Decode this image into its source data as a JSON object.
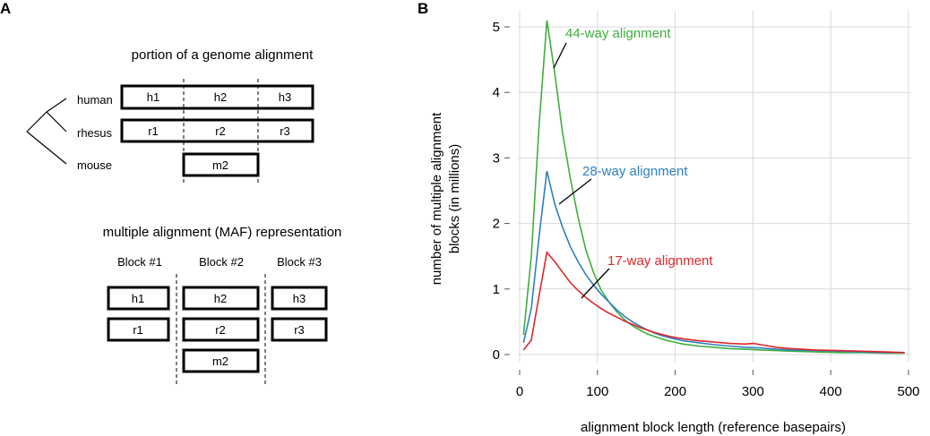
{
  "panel_a": {
    "label": "A",
    "top_title": "portion of a genome alignment",
    "species": [
      "human",
      "rhesus",
      "mouse"
    ],
    "human_segments": [
      "h1",
      "h2",
      "h3"
    ],
    "rhesus_segments": [
      "r1",
      "r2",
      "r3"
    ],
    "mouse_segments": [
      "m2"
    ],
    "bottom_title": "multiple alignment (MAF) representation",
    "blocks": [
      {
        "name": "Block #1",
        "rows": [
          "h1",
          "r1"
        ]
      },
      {
        "name": "Block #2",
        "rows": [
          "h2",
          "r2",
          "m2"
        ]
      },
      {
        "name": "Block #3",
        "rows": [
          "h3",
          "r3"
        ]
      }
    ]
  },
  "chart_data": {
    "label": "B",
    "type": "line",
    "xlabel": "alignment block length (reference basepairs)",
    "ylabel_lines": [
      "number of multiple alignment",
      "blocks (in millions)"
    ],
    "xlim": [
      0,
      500
    ],
    "ylim": [
      0,
      5.3
    ],
    "xticks": [
      0,
      100,
      200,
      300,
      400,
      500
    ],
    "yticks": [
      0,
      1,
      2,
      3,
      4,
      5
    ],
    "grid": true,
    "series": [
      {
        "name": "44-way alignment",
        "color": "#3fae3f",
        "x": [
          5,
          15,
          25,
          35,
          45,
          55,
          65,
          75,
          85,
          95,
          105,
          115,
          125,
          135,
          145,
          155,
          165,
          175,
          185,
          195,
          210,
          230,
          250,
          270,
          290,
          310,
          330,
          350,
          380,
          410,
          440,
          470,
          495
        ],
        "y": [
          0.3,
          1.5,
          3.5,
          5.1,
          4.3,
          3.4,
          2.7,
          2.1,
          1.6,
          1.25,
          0.98,
          0.8,
          0.65,
          0.53,
          0.44,
          0.37,
          0.31,
          0.27,
          0.23,
          0.2,
          0.16,
          0.13,
          0.11,
          0.09,
          0.08,
          0.07,
          0.06,
          0.05,
          0.04,
          0.03,
          0.03,
          0.02,
          0.02
        ]
      },
      {
        "name": "28-way alignment",
        "color": "#2f7fc0",
        "x": [
          5,
          15,
          25,
          35,
          45,
          55,
          65,
          75,
          85,
          95,
          105,
          115,
          125,
          135,
          145,
          155,
          165,
          175,
          185,
          195,
          210,
          230,
          250,
          270,
          290,
          310,
          330,
          350,
          380,
          410,
          440,
          470,
          495
        ],
        "y": [
          0.18,
          0.7,
          1.8,
          2.8,
          2.3,
          1.95,
          1.65,
          1.42,
          1.22,
          1.06,
          0.92,
          0.8,
          0.68,
          0.58,
          0.5,
          0.43,
          0.37,
          0.32,
          0.28,
          0.25,
          0.21,
          0.18,
          0.15,
          0.13,
          0.11,
          0.1,
          0.08,
          0.07,
          0.06,
          0.05,
          0.04,
          0.03,
          0.03
        ]
      },
      {
        "name": "17-way alignment",
        "color": "#e0262b",
        "x": [
          5,
          15,
          25,
          35,
          45,
          55,
          65,
          75,
          85,
          95,
          105,
          115,
          125,
          135,
          145,
          155,
          165,
          175,
          185,
          195,
          210,
          230,
          250,
          270,
          290,
          300,
          310,
          330,
          350,
          380,
          410,
          440,
          470,
          495
        ],
        "y": [
          0.07,
          0.22,
          0.9,
          1.56,
          1.42,
          1.26,
          1.1,
          0.98,
          0.87,
          0.78,
          0.7,
          0.63,
          0.57,
          0.51,
          0.46,
          0.41,
          0.37,
          0.33,
          0.3,
          0.27,
          0.24,
          0.21,
          0.19,
          0.17,
          0.16,
          0.17,
          0.15,
          0.11,
          0.09,
          0.07,
          0.06,
          0.05,
          0.04,
          0.03
        ]
      }
    ],
    "annotations": [
      "44-way alignment",
      "28-way alignment",
      "17-way alignment"
    ]
  }
}
